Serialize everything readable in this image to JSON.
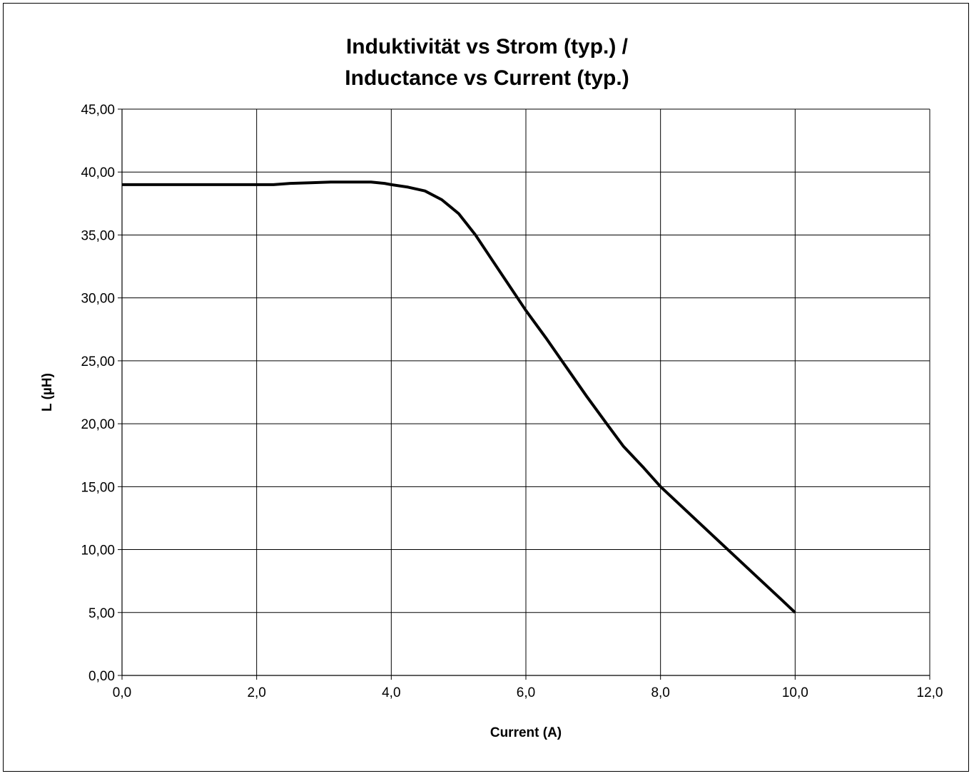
{
  "chart_data": {
    "type": "line",
    "title_lines": [
      "Induktivität vs Strom (typ.) /",
      "Inductance vs Current (typ.)"
    ],
    "xlabel": "Current (A)",
    "ylabel": "L (µH)",
    "xlim": [
      0,
      12
    ],
    "ylim": [
      0,
      45
    ],
    "x_ticks": [
      0,
      2,
      4,
      6,
      8,
      10,
      12
    ],
    "y_ticks": [
      0,
      5,
      10,
      15,
      20,
      25,
      30,
      35,
      40,
      45
    ],
    "x_tick_labels": [
      "0,0",
      "2,0",
      "4,0",
      "6,0",
      "8,0",
      "10,0",
      "12,0"
    ],
    "y_tick_labels": [
      "0,00",
      "5,00",
      "10,00",
      "15,00",
      "20,00",
      "25,00",
      "30,00",
      "35,00",
      "40,00",
      "45,00"
    ],
    "grid": true,
    "line_color": "#000000",
    "series": [
      {
        "x": [
          0,
          2.25,
          2.5,
          2.8,
          3.1,
          3.4,
          3.7,
          3.9,
          4.0,
          4.25,
          4.5,
          4.75,
          5.0,
          5.25,
          5.5,
          5.75,
          6.0,
          6.3,
          6.6,
          6.9,
          7.2,
          7.45,
          7.75,
          8.0,
          8.3,
          8.6,
          9.0,
          9.4,
          9.8,
          10.0
        ],
        "y": [
          39.0,
          39.0,
          39.1,
          39.15,
          39.2,
          39.2,
          39.2,
          39.1,
          39.0,
          38.8,
          38.5,
          37.8,
          36.7,
          35.0,
          33.0,
          31.0,
          29.0,
          26.8,
          24.5,
          22.2,
          20.0,
          18.2,
          16.5,
          15.0,
          13.5,
          12.0,
          10.0,
          8.0,
          6.0,
          5.0
        ]
      }
    ]
  }
}
